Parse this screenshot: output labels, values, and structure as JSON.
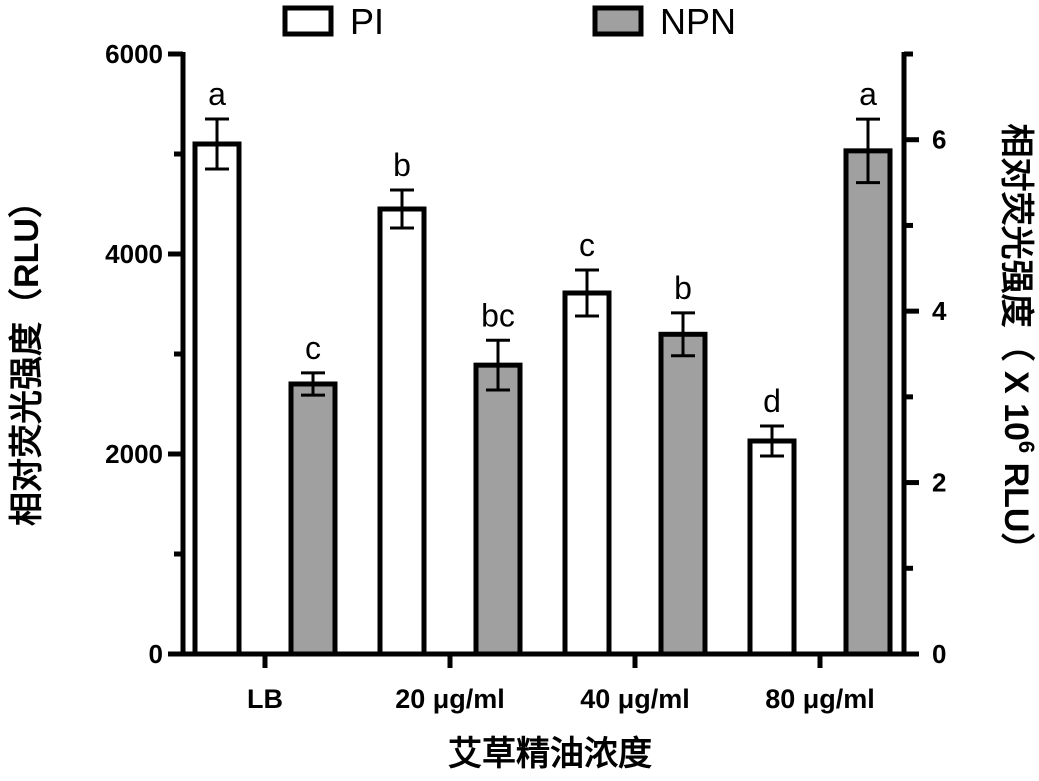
{
  "chart_data": {
    "type": "bar",
    "categories": [
      "LB",
      "20 μg/ml",
      "40 μg/ml",
      "80 μg/ml"
    ],
    "series": [
      {
        "name": "PI",
        "axis": "left",
        "values": [
          5100,
          4450,
          3610,
          2130
        ],
        "errors": [
          250,
          190,
          230,
          150
        ],
        "significance": [
          "a",
          "b",
          "c",
          "d"
        ],
        "fill_color": "#ffffff"
      },
      {
        "name": "NPN",
        "axis": "right",
        "values": [
          3.15,
          3.37,
          3.73,
          5.87
        ],
        "errors": [
          0.13,
          0.29,
          0.25,
          0.37
        ],
        "significance": [
          "c",
          "bc",
          "b",
          "a"
        ],
        "fill_color": "#a0a0a0"
      }
    ],
    "left_axis": {
      "label": "相对荧光强度（RLU）",
      "range": [
        0,
        6000
      ],
      "ticks": [
        "0",
        "2000",
        "4000",
        "6000"
      ]
    },
    "right_axis": {
      "label_main": "相对荧光强度（ X 10",
      "label_exp": "6",
      "label_tail": " RLU）",
      "range": [
        0,
        7
      ],
      "ticks": [
        "0",
        "2",
        "4",
        "6"
      ]
    },
    "xlabel": "艾草精油浓度",
    "legend": {
      "position": "top",
      "entries": [
        "PI",
        "NPN"
      ]
    },
    "grid": false
  }
}
